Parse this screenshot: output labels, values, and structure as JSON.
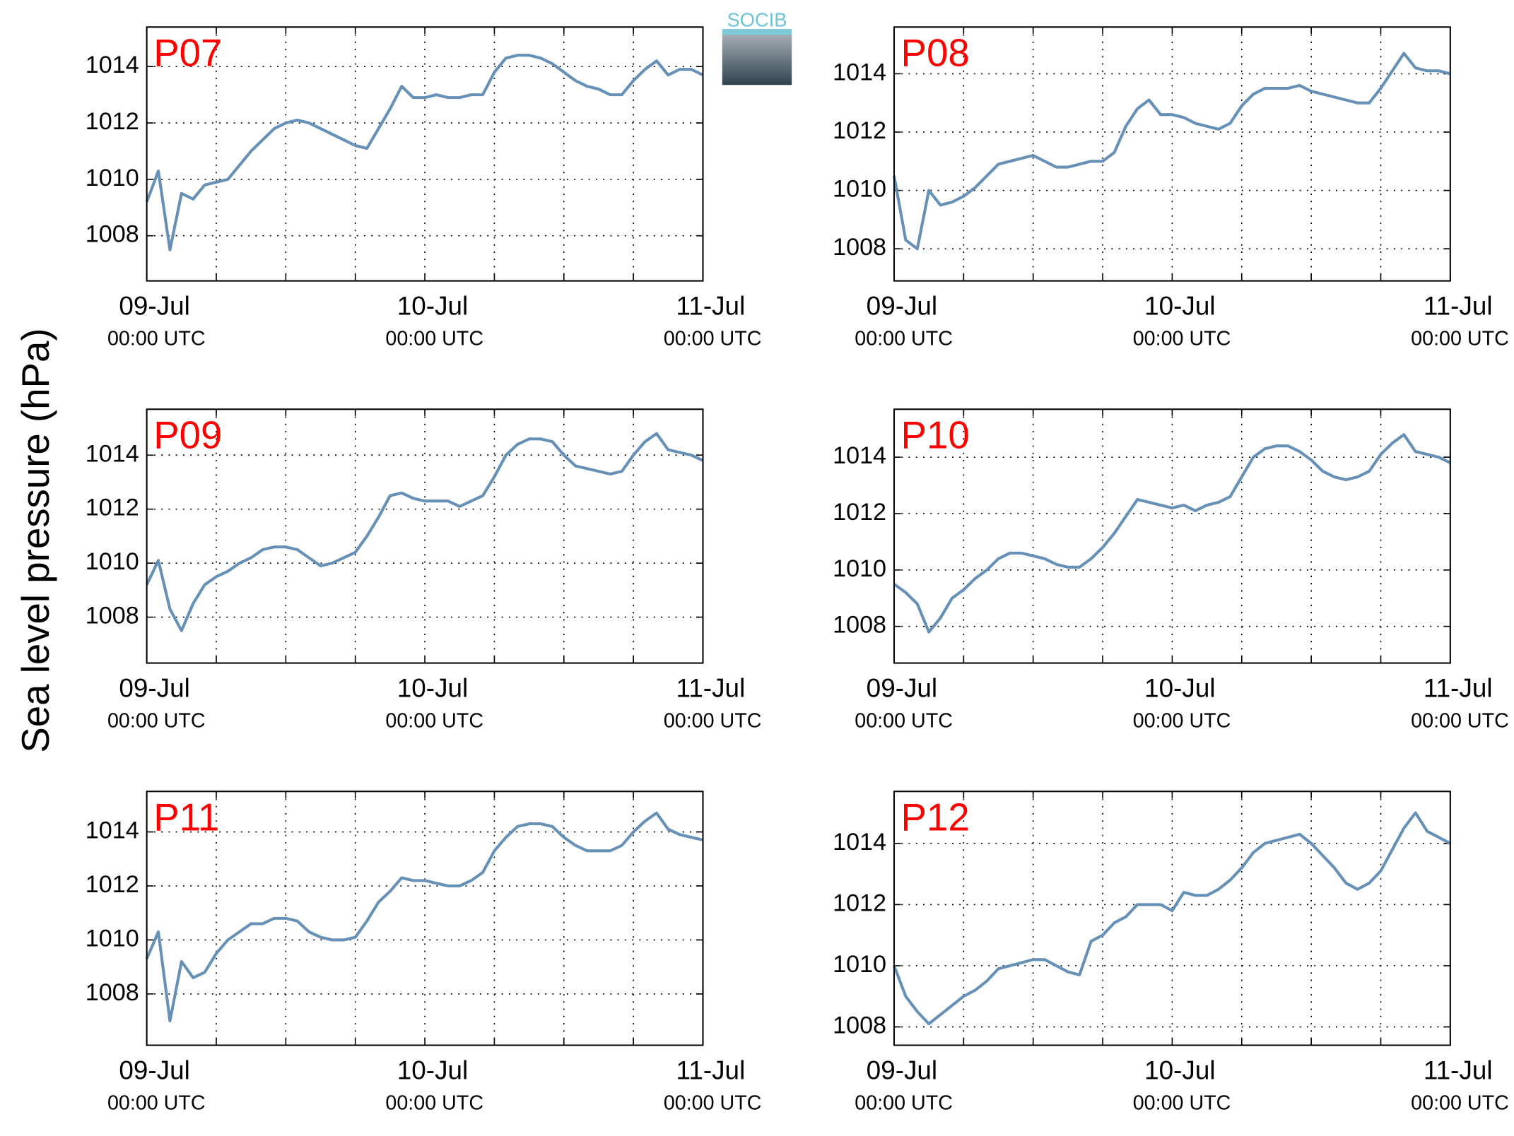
{
  "figure": {
    "ylabel": "Sea level pressure (hPa)",
    "logo": "SOCIB"
  },
  "chart_data": [
    {
      "type": "line",
      "title": "P07",
      "color": "#6690b6",
      "xlim": [
        0,
        48
      ],
      "ylim": [
        1006.4,
        1015.4
      ],
      "xticks": [
        {
          "value": 0,
          "label": [
            "09-Jul",
            "00:00 UTC"
          ]
        },
        {
          "value": 24,
          "label": [
            "10-Jul",
            "00:00 UTC"
          ]
        },
        {
          "value": 48,
          "label": [
            "11-Jul",
            "00:00 UTC"
          ]
        }
      ],
      "xminorticks": [
        6,
        12,
        18,
        30,
        36,
        42
      ],
      "yticks": [
        1008,
        1010,
        1012,
        1014
      ],
      "grid": true,
      "x": [
        0,
        1,
        2,
        3,
        4,
        5,
        6,
        7,
        8,
        9,
        10,
        11,
        12,
        13,
        14,
        15,
        16,
        17,
        18,
        19,
        20,
        21,
        22,
        23,
        24,
        25,
        26,
        27,
        28,
        29,
        30,
        31,
        32,
        33,
        34,
        35,
        36,
        37,
        38,
        39,
        40,
        41,
        42,
        43,
        44,
        45,
        46,
        47,
        48
      ],
      "values": [
        1009.2,
        1010.3,
        1007.5,
        1009.5,
        1009.3,
        1009.8,
        1009.9,
        1010,
        1010.5,
        1011,
        1011.4,
        1011.8,
        1012,
        1012.1,
        1012,
        1011.8,
        1011.6,
        1011.4,
        1011.2,
        1011.1,
        1011.8,
        1012.5,
        1013.3,
        1012.9,
        1012.9,
        1013,
        1012.9,
        1012.9,
        1013,
        1013,
        1013.8,
        1014.3,
        1014.4,
        1014.4,
        1014.3,
        1014.1,
        1013.8,
        1013.5,
        1013.3,
        1013.2,
        1013,
        1013,
        1013.5,
        1013.9,
        1014.2,
        1013.7,
        1013.9,
        1013.9,
        1013.7
      ]
    },
    {
      "type": "line",
      "title": "P08",
      "color": "#6690b6",
      "xlim": [
        0,
        48
      ],
      "ylim": [
        1006.9,
        1015.6
      ],
      "xticks": [
        {
          "value": 0,
          "label": [
            "09-Jul",
            "00:00 UTC"
          ]
        },
        {
          "value": 24,
          "label": [
            "10-Jul",
            "00:00 UTC"
          ]
        },
        {
          "value": 48,
          "label": [
            "11-Jul",
            "00:00 UTC"
          ]
        }
      ],
      "xminorticks": [
        6,
        12,
        18,
        30,
        36,
        42
      ],
      "yticks": [
        1008,
        1010,
        1012,
        1014
      ],
      "grid": true,
      "x": [
        0,
        1,
        2,
        3,
        4,
        5,
        6,
        7,
        8,
        9,
        10,
        11,
        12,
        13,
        14,
        15,
        16,
        17,
        18,
        19,
        20,
        21,
        22,
        23,
        24,
        25,
        26,
        27,
        28,
        29,
        30,
        31,
        32,
        33,
        34,
        35,
        36,
        37,
        38,
        39,
        40,
        41,
        42,
        43,
        44,
        45,
        46,
        47,
        48
      ],
      "values": [
        1010.5,
        1008.3,
        1008,
        1010,
        1009.5,
        1009.6,
        1009.8,
        1010.1,
        1010.5,
        1010.9,
        1011,
        1011.1,
        1011.2,
        1011,
        1010.8,
        1010.8,
        1010.9,
        1011,
        1011,
        1011.3,
        1012.2,
        1012.8,
        1013.1,
        1012.6,
        1012.6,
        1012.5,
        1012.3,
        1012.2,
        1012.1,
        1012.3,
        1012.9,
        1013.3,
        1013.5,
        1013.5,
        1013.5,
        1013.6,
        1013.4,
        1013.3,
        1013.2,
        1013.1,
        1013,
        1013,
        1013.5,
        1014.1,
        1014.7,
        1014.2,
        1014.1,
        1014.1,
        1014
      ]
    },
    {
      "type": "line",
      "title": "P09",
      "color": "#6690b6",
      "xlim": [
        0,
        48
      ],
      "ylim": [
        1006.3,
        1015.7
      ],
      "xticks": [
        {
          "value": 0,
          "label": [
            "09-Jul",
            "00:00 UTC"
          ]
        },
        {
          "value": 24,
          "label": [
            "10-Jul",
            "00:00 UTC"
          ]
        },
        {
          "value": 48,
          "label": [
            "11-Jul",
            "00:00 UTC"
          ]
        }
      ],
      "xminorticks": [
        6,
        12,
        18,
        30,
        36,
        42
      ],
      "yticks": [
        1008,
        1010,
        1012,
        1014
      ],
      "grid": true,
      "x": [
        0,
        1,
        2,
        3,
        4,
        5,
        6,
        7,
        8,
        9,
        10,
        11,
        12,
        13,
        14,
        15,
        16,
        17,
        18,
        19,
        20,
        21,
        22,
        23,
        24,
        25,
        26,
        27,
        28,
        29,
        30,
        31,
        32,
        33,
        34,
        35,
        36,
        37,
        38,
        39,
        40,
        41,
        42,
        43,
        44,
        45,
        46,
        47,
        48
      ],
      "values": [
        1009.2,
        1010.1,
        1008.3,
        1007.5,
        1008.5,
        1009.2,
        1009.5,
        1009.7,
        1010,
        1010.2,
        1010.5,
        1010.6,
        1010.6,
        1010.5,
        1010.2,
        1009.9,
        1010,
        1010.2,
        1010.4,
        1011,
        1011.7,
        1012.5,
        1012.6,
        1012.4,
        1012.3,
        1012.3,
        1012.3,
        1012.1,
        1012.3,
        1012.5,
        1013.2,
        1014,
        1014.4,
        1014.6,
        1014.6,
        1014.5,
        1014,
        1013.6,
        1013.5,
        1013.4,
        1013.3,
        1013.4,
        1014,
        1014.5,
        1014.8,
        1014.2,
        1014.1,
        1014,
        1013.8
      ]
    },
    {
      "type": "line",
      "title": "P10",
      "color": "#6690b6",
      "xlim": [
        0,
        48
      ],
      "ylim": [
        1006.7,
        1015.7
      ],
      "xticks": [
        {
          "value": 0,
          "label": [
            "09-Jul",
            "00:00 UTC"
          ]
        },
        {
          "value": 24,
          "label": [
            "10-Jul",
            "00:00 UTC"
          ]
        },
        {
          "value": 48,
          "label": [
            "11-Jul",
            "00:00 UTC"
          ]
        }
      ],
      "xminorticks": [
        6,
        12,
        18,
        30,
        36,
        42
      ],
      "yticks": [
        1008,
        1010,
        1012,
        1014
      ],
      "grid": true,
      "x": [
        0,
        1,
        2,
        3,
        4,
        5,
        6,
        7,
        8,
        9,
        10,
        11,
        12,
        13,
        14,
        15,
        16,
        17,
        18,
        19,
        20,
        21,
        22,
        23,
        24,
        25,
        26,
        27,
        28,
        29,
        30,
        31,
        32,
        33,
        34,
        35,
        36,
        37,
        38,
        39,
        40,
        41,
        42,
        43,
        44,
        45,
        46,
        47,
        48
      ],
      "values": [
        1009.5,
        1009.2,
        1008.8,
        1007.8,
        1008.3,
        1009,
        1009.3,
        1009.7,
        1010,
        1010.4,
        1010.6,
        1010.6,
        1010.5,
        1010.4,
        1010.2,
        1010.1,
        1010.1,
        1010.4,
        1010.8,
        1011.3,
        1011.9,
        1012.5,
        1012.4,
        1012.3,
        1012.2,
        1012.3,
        1012.1,
        1012.3,
        1012.4,
        1012.6,
        1013.3,
        1014,
        1014.3,
        1014.4,
        1014.4,
        1014.2,
        1013.9,
        1013.5,
        1013.3,
        1013.2,
        1013.3,
        1013.5,
        1014.1,
        1014.5,
        1014.8,
        1014.2,
        1014.1,
        1014,
        1013.8
      ]
    },
    {
      "type": "line",
      "title": "P11",
      "color": "#6690b6",
      "xlim": [
        0,
        48
      ],
      "ylim": [
        1006.1,
        1015.5
      ],
      "xticks": [
        {
          "value": 0,
          "label": [
            "09-Jul",
            "00:00 UTC"
          ]
        },
        {
          "value": 24,
          "label": [
            "10-Jul",
            "00:00 UTC"
          ]
        },
        {
          "value": 48,
          "label": [
            "11-Jul",
            "00:00 UTC"
          ]
        }
      ],
      "xminorticks": [
        6,
        12,
        18,
        30,
        36,
        42
      ],
      "yticks": [
        1008,
        1010,
        1012,
        1014
      ],
      "grid": true,
      "x": [
        0,
        1,
        2,
        3,
        4,
        5,
        6,
        7,
        8,
        9,
        10,
        11,
        12,
        13,
        14,
        15,
        16,
        17,
        18,
        19,
        20,
        21,
        22,
        23,
        24,
        25,
        26,
        27,
        28,
        29,
        30,
        31,
        32,
        33,
        34,
        35,
        36,
        37,
        38,
        39,
        40,
        41,
        42,
        43,
        44,
        45,
        46,
        47,
        48
      ],
      "values": [
        1009.3,
        1010.3,
        1007,
        1009.2,
        1008.6,
        1008.8,
        1009.5,
        1010,
        1010.3,
        1010.6,
        1010.6,
        1010.8,
        1010.8,
        1010.7,
        1010.3,
        1010.1,
        1010,
        1010,
        1010.1,
        1010.7,
        1011.4,
        1011.8,
        1012.3,
        1012.2,
        1012.2,
        1012.1,
        1012,
        1012,
        1012.2,
        1012.5,
        1013.3,
        1013.8,
        1014.2,
        1014.3,
        1014.3,
        1014.2,
        1013.8,
        1013.5,
        1013.3,
        1013.3,
        1013.3,
        1013.5,
        1014,
        1014.4,
        1014.7,
        1014.1,
        1013.9,
        1013.8,
        1013.7
      ]
    },
    {
      "type": "line",
      "title": "P12",
      "color": "#6690b6",
      "xlim": [
        0,
        48
      ],
      "ylim": [
        1007.4,
        1015.7
      ],
      "xticks": [
        {
          "value": 0,
          "label": [
            "09-Jul",
            "00:00 UTC"
          ]
        },
        {
          "value": 24,
          "label": [
            "10-Jul",
            "00:00 UTC"
          ]
        },
        {
          "value": 48,
          "label": [
            "11-Jul",
            "00:00 UTC"
          ]
        }
      ],
      "xminorticks": [
        6,
        12,
        18,
        30,
        36,
        42
      ],
      "yticks": [
        1008,
        1010,
        1012,
        1014
      ],
      "grid": true,
      "x": [
        0,
        1,
        2,
        3,
        4,
        5,
        6,
        7,
        8,
        9,
        10,
        11,
        12,
        13,
        14,
        15,
        16,
        17,
        18,
        19,
        20,
        21,
        22,
        23,
        24,
        25,
        26,
        27,
        28,
        29,
        30,
        31,
        32,
        33,
        34,
        35,
        36,
        37,
        38,
        39,
        40,
        41,
        42,
        43,
        44,
        45,
        46,
        47,
        48
      ],
      "values": [
        1010,
        1009,
        1008.5,
        1008.1,
        1008.4,
        1008.7,
        1009,
        1009.2,
        1009.5,
        1009.9,
        1010,
        1010.1,
        1010.2,
        1010.2,
        1010,
        1009.8,
        1009.7,
        1010.8,
        1011,
        1011.4,
        1011.6,
        1012,
        1012,
        1012,
        1011.8,
        1012.4,
        1012.3,
        1012.3,
        1012.5,
        1012.8,
        1013.2,
        1013.7,
        1014,
        1014.1,
        1014.2,
        1014.3,
        1014,
        1013.6,
        1013.2,
        1012.7,
        1012.5,
        1012.7,
        1013.1,
        1013.8,
        1014.5,
        1015,
        1014.4,
        1014.2,
        1014
      ]
    }
  ]
}
